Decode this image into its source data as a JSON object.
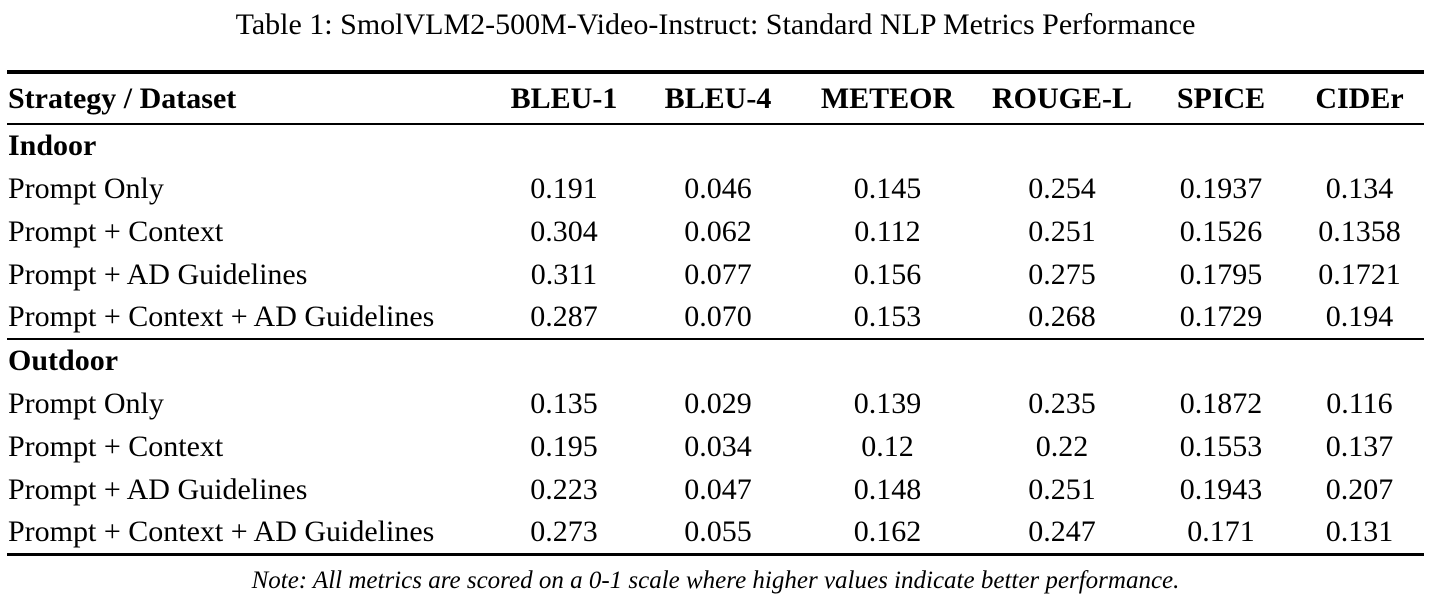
{
  "caption": "Table 1: SmolVLM2-500M-Video-Instruct: Standard NLP Metrics Performance",
  "table": {
    "columns": [
      "Strategy / Dataset",
      "BLEU-1",
      "BLEU-4",
      "METEOR",
      "ROUGE-L",
      "SPICE",
      "CIDEr"
    ],
    "sections": [
      {
        "name": "Indoor",
        "rows": [
          {
            "label": "Prompt Only",
            "values": [
              "0.191",
              "0.046",
              "0.145",
              "0.254",
              "0.1937",
              "0.134"
            ]
          },
          {
            "label": "Prompt + Context",
            "values": [
              "0.304",
              "0.062",
              "0.112",
              "0.251",
              "0.1526",
              "0.1358"
            ]
          },
          {
            "label": "Prompt + AD Guidelines",
            "values": [
              "0.311",
              "0.077",
              "0.156",
              "0.275",
              "0.1795",
              "0.1721"
            ]
          },
          {
            "label": "Prompt + Context + AD Guidelines",
            "values": [
              "0.287",
              "0.070",
              "0.153",
              "0.268",
              "0.1729",
              "0.194"
            ]
          }
        ]
      },
      {
        "name": "Outdoor",
        "rows": [
          {
            "label": "Prompt Only",
            "values": [
              "0.135",
              "0.029",
              "0.139",
              "0.235",
              "0.1872",
              "0.116"
            ]
          },
          {
            "label": "Prompt + Context",
            "values": [
              "0.195",
              "0.034",
              "0.12",
              "0.22",
              "0.1553",
              "0.137"
            ]
          },
          {
            "label": "Prompt + AD Guidelines",
            "values": [
              "0.223",
              "0.047",
              "0.148",
              "0.251",
              "0.1943",
              "0.207"
            ]
          },
          {
            "label": "Prompt + Context + AD Guidelines",
            "values": [
              "0.273",
              "0.055",
              "0.162",
              "0.247",
              "0.171",
              "0.131"
            ]
          }
        ]
      }
    ]
  },
  "note": "Note: All metrics are scored on a 0-1 scale where higher values indicate better performance.",
  "colors": {
    "text": "#000000",
    "background": "#ffffff",
    "rule": "#000000"
  }
}
